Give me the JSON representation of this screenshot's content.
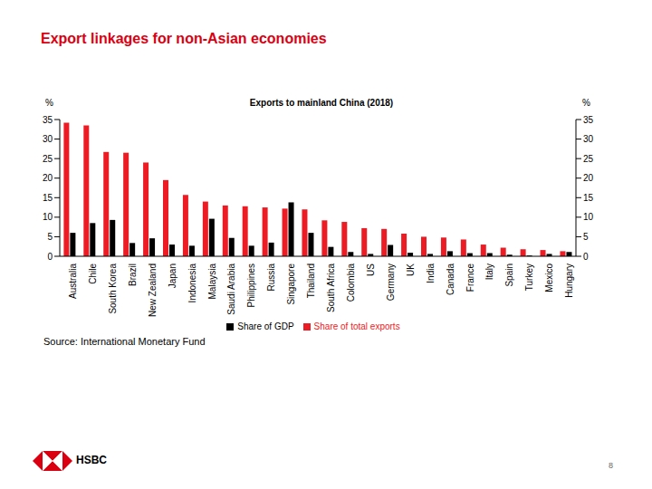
{
  "slide": {
    "heading": "Export linkages for non-Asian economies",
    "source": "Source: International Monetary Fund",
    "logo_text": "HSBC",
    "page_number": "8"
  },
  "chart_data": {
    "type": "bar",
    "title": "Exports to mainland China (2018)",
    "y_label": "%",
    "y2_label": "%",
    "categories": [
      "Australia",
      "Chile",
      "South Korea",
      "Brazil",
      "New Zealand",
      "Japan",
      "Indonesia",
      "Malaysia",
      "Saudi Arabia",
      "Philippines",
      "Russia",
      "Singapore",
      "Thailand",
      "South Africa",
      "Colombia",
      "US",
      "Germany",
      "UK",
      "India",
      "Canada",
      "France",
      "Italy",
      "Spain",
      "Turkey",
      "Mexico",
      "Hungary"
    ],
    "series": [
      {
        "name": "Share of total exports",
        "color": "#ed1c24",
        "values": [
          34.2,
          33.5,
          26.7,
          26.5,
          24,
          19.5,
          15.7,
          14,
          13,
          12.8,
          12.5,
          12.2,
          12,
          9.2,
          8.8,
          7.2,
          7,
          5.8,
          5,
          4.8,
          4.3,
          3,
          2.2,
          1.8,
          1.6,
          1.3
        ]
      },
      {
        "name": "Share of GDP",
        "color": "#000000",
        "values": [
          6,
          8.5,
          9.3,
          3.4,
          4.6,
          3,
          2.7,
          9.6,
          4.7,
          2.7,
          3.5,
          13.8,
          6,
          2.4,
          1.1,
          0.6,
          2.9,
          0.9,
          0.6,
          1.3,
          0.8,
          0.8,
          0.4,
          0.2,
          0.6,
          1.1
        ]
      }
    ],
    "ylim": [
      0,
      35
    ],
    "yticks": [
      0,
      5,
      10,
      15,
      20,
      25,
      30,
      35
    ],
    "y2lim": [
      0,
      35
    ],
    "y2ticks": [
      0,
      5,
      10,
      15,
      20,
      25,
      30,
      35
    ],
    "grid": false,
    "legend": "bottom"
  }
}
